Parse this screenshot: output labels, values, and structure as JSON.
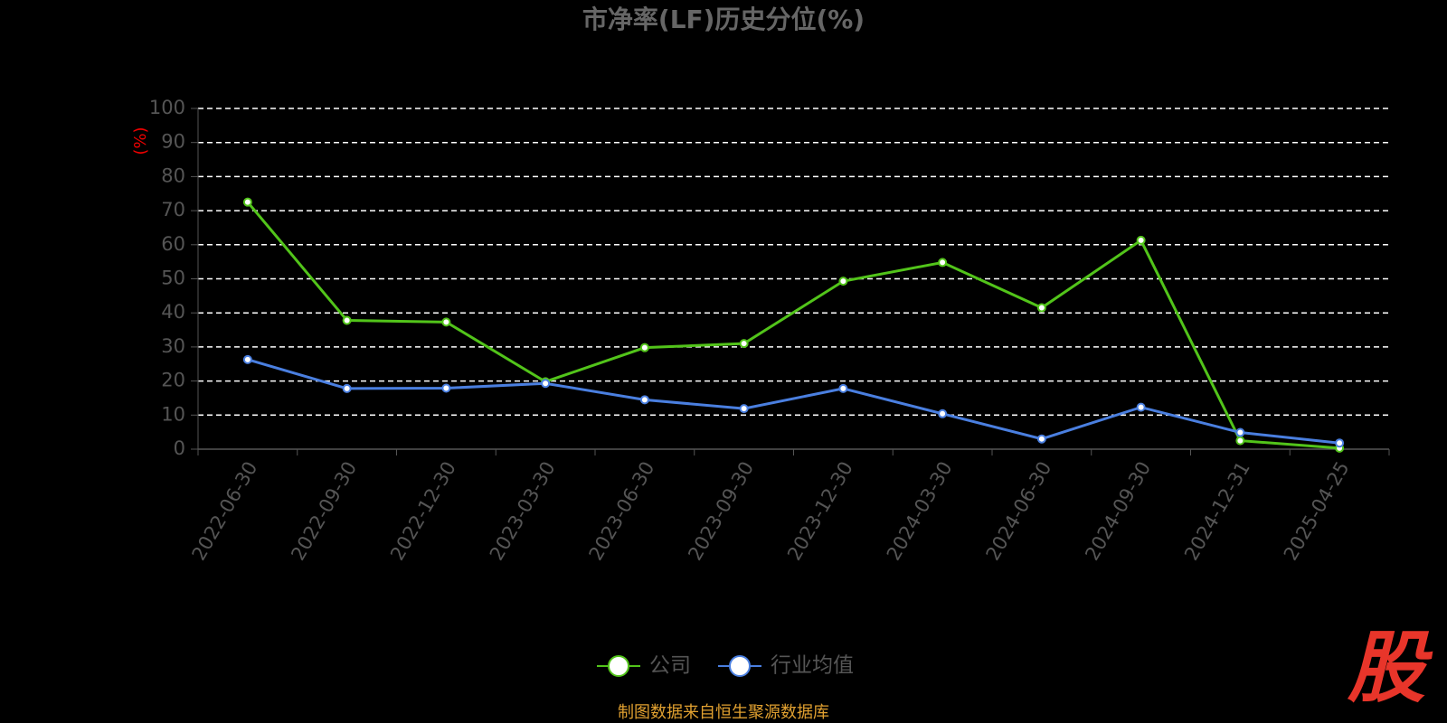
{
  "chart_data": {
    "type": "line",
    "title": "市净率(LF)历史分位(%)",
    "y_label": "(%)",
    "categories": [
      "2022-06-30",
      "2022-09-30",
      "2022-12-30",
      "2023-03-30",
      "2023-06-30",
      "2023-09-30",
      "2023-12-30",
      "2024-03-30",
      "2024-06-30",
      "2024-09-30",
      "2024-12-31",
      "2025-04-25"
    ],
    "series": [
      {
        "name": "公司",
        "color": "#52c41a",
        "values": [
          72.5,
          37.8,
          37.3,
          19.8,
          29.8,
          31.0,
          49.3,
          54.8,
          41.5,
          61.3,
          2.5,
          0.3
        ]
      },
      {
        "name": "行业均值",
        "color": "#4a7fe0",
        "values": [
          26.3,
          17.8,
          17.9,
          19.3,
          14.5,
          11.9,
          17.8,
          10.4,
          3.0,
          12.3,
          4.9,
          1.8
        ]
      }
    ],
    "ylim": [
      0,
      100
    ],
    "yticks": [
      0,
      10,
      20,
      30,
      40,
      50,
      60,
      70,
      80,
      90,
      100
    ],
    "grid": true,
    "legend_position": "bottom",
    "source": "制图数据来自恒生聚源数据库",
    "watermark": "股"
  }
}
